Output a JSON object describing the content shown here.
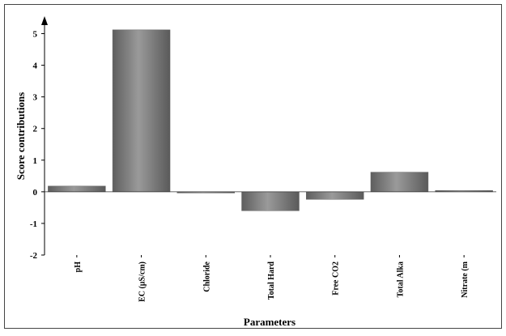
{
  "chart_data": {
    "type": "bar",
    "categories": [
      "pH",
      "EC (µS/cm)",
      "Chloride",
      "Total Hard",
      "Free CO2",
      "Total Alka",
      "Nitrate (m"
    ],
    "values": [
      0.18,
      5.12,
      -0.03,
      -0.6,
      -0.24,
      0.62,
      0.04
    ],
    "xlabel": "Parameters",
    "ylabel": "Score contributions",
    "ylim": [
      -2,
      5.5
    ],
    "yticks": [
      -2,
      -1,
      0,
      1,
      2,
      3,
      4,
      5
    ],
    "grid": false,
    "legend": "none",
    "bar_color": "#7a7a7a"
  }
}
